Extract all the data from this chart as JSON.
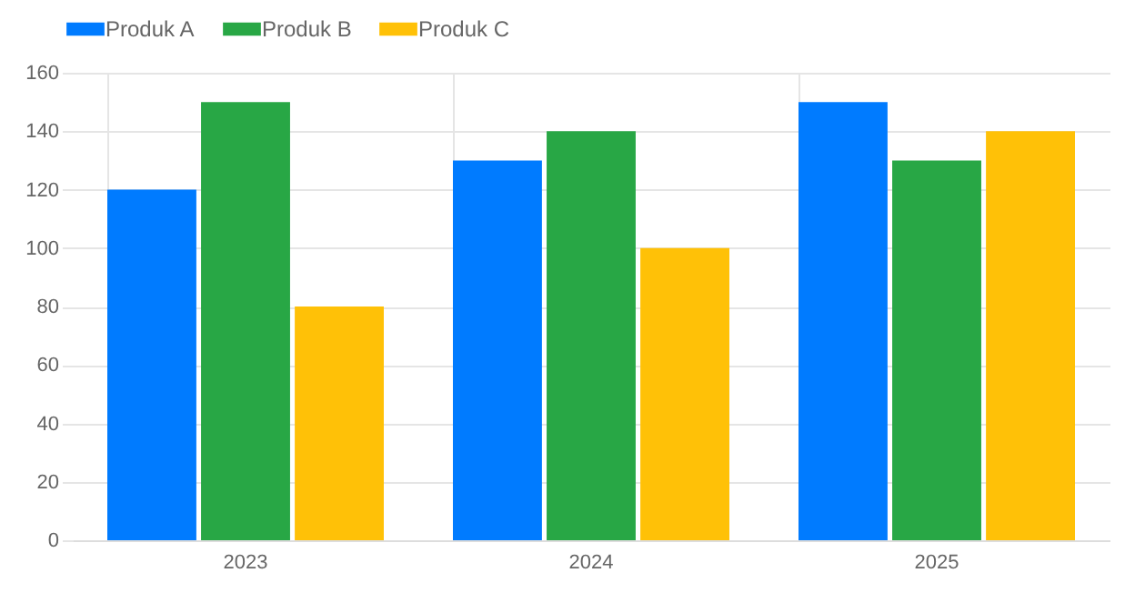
{
  "chart_data": {
    "type": "bar",
    "categories": [
      "2023",
      "2024",
      "2025"
    ],
    "series": [
      {
        "name": "Produk A",
        "color": "#007bff",
        "values": [
          120,
          130,
          150
        ]
      },
      {
        "name": "Produk B",
        "color": "#28a745",
        "values": [
          150,
          140,
          130
        ]
      },
      {
        "name": "Produk C",
        "color": "#ffc107",
        "values": [
          80,
          100,
          140
        ]
      }
    ],
    "ylim": [
      0,
      160
    ],
    "yticks": [
      0,
      20,
      40,
      60,
      80,
      100,
      120,
      140,
      160
    ],
    "grid": true,
    "legend": "top"
  }
}
